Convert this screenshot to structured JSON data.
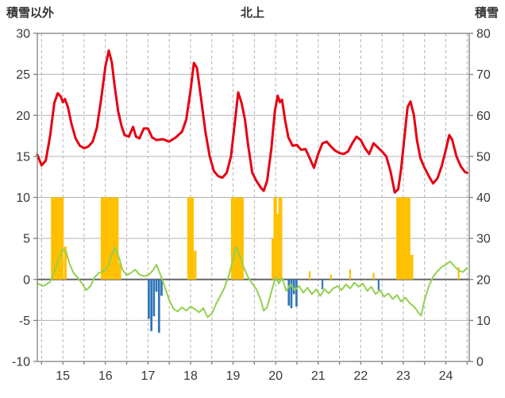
{
  "header": {
    "left_label": "積雪以外",
    "title": "北上",
    "right_label": "積雪"
  },
  "chart_data": {
    "type": "combo",
    "title": "北上",
    "x_axis": {
      "range": [
        14.4,
        24.55
      ],
      "tick_values": [
        15,
        16,
        17,
        18,
        19,
        20,
        21,
        22,
        23,
        24
      ],
      "tick_labels": [
        "15",
        "16",
        "17",
        "18",
        "19",
        "20",
        "21",
        "22",
        "23",
        "24"
      ],
      "grid_step": 0.5,
      "grid_style": "dashed"
    },
    "left_axis": {
      "label": "積雪以外",
      "min": -10,
      "max": 30,
      "step": 5,
      "tick_labels": [
        "30",
        "25",
        "20",
        "15",
        "10",
        "5",
        "0",
        "-5",
        "-10"
      ]
    },
    "right_axis": {
      "label": "積雪",
      "min": 0,
      "max": 80,
      "step": 10,
      "tick_labels": [
        "80",
        "70",
        "60",
        "50",
        "40",
        "30",
        "20",
        "10",
        "0"
      ]
    },
    "colors": {
      "red_line": "#e60012",
      "green_line": "#92d050",
      "orange_bar": "#ffc000",
      "blue_bar": "#2e75b6",
      "grid": "#b3b3b3",
      "axis": "#808080",
      "zero_line": "#666666",
      "text": "#383838"
    },
    "series": [
      {
        "name": "orange-bars",
        "type": "bar",
        "color_key": "orange_bar",
        "bars": [
          [
            14.87,
            0.3,
            10
          ],
          [
            15.06,
            0.06,
            4
          ],
          [
            16.1,
            0.42,
            10
          ],
          [
            16.34,
            0.06,
            2
          ],
          [
            18.0,
            0.15,
            10
          ],
          [
            18.11,
            0.06,
            3.5
          ],
          [
            19.1,
            0.3,
            10
          ],
          [
            19.93,
            0.05,
            5
          ],
          [
            19.99,
            0.08,
            10
          ],
          [
            20.05,
            0.04,
            8
          ],
          [
            20.11,
            0.09,
            10
          ],
          [
            20.8,
            0.04,
            1.0
          ],
          [
            21.3,
            0.04,
            0.6
          ],
          [
            21.75,
            0.04,
            1.2
          ],
          [
            22.3,
            0.04,
            0.8
          ],
          [
            23.0,
            0.33,
            10
          ],
          [
            23.2,
            0.07,
            3
          ],
          [
            24.3,
            0.04,
            1.5
          ]
        ]
      },
      {
        "name": "blue-bars",
        "type": "bar",
        "color_key": "blue_bar",
        "bars": [
          [
            17.02,
            0.05,
            -4.8
          ],
          [
            17.08,
            0.05,
            -6.3
          ],
          [
            17.14,
            0.05,
            -4.5
          ],
          [
            17.2,
            0.05,
            -1.5
          ],
          [
            17.26,
            0.05,
            -6.5
          ],
          [
            17.32,
            0.05,
            -2.0
          ],
          [
            20.31,
            0.05,
            -3.2
          ],
          [
            20.37,
            0.05,
            -3.5
          ],
          [
            20.43,
            0.05,
            -1.8
          ],
          [
            20.49,
            0.05,
            -3.3
          ],
          [
            21.1,
            0.04,
            -1.2
          ],
          [
            22.42,
            0.04,
            -1.3
          ]
        ]
      },
      {
        "name": "green-line",
        "type": "line",
        "color_key": "green_line",
        "width": 2,
        "points": [
          [
            14.4,
            -0.5
          ],
          [
            14.55,
            -0.8
          ],
          [
            14.7,
            -0.3
          ],
          [
            14.8,
            1.0
          ],
          [
            14.9,
            2.5
          ],
          [
            15.0,
            3.7
          ],
          [
            15.08,
            3.3
          ],
          [
            15.15,
            2.0
          ],
          [
            15.25,
            0.8
          ],
          [
            15.35,
            0.2
          ],
          [
            15.45,
            -0.5
          ],
          [
            15.55,
            -1.3
          ],
          [
            15.65,
            -0.8
          ],
          [
            15.75,
            0.3
          ],
          [
            15.85,
            0.8
          ],
          [
            15.95,
            1.0
          ],
          [
            16.05,
            1.5
          ],
          [
            16.15,
            3.0
          ],
          [
            16.22,
            3.9
          ],
          [
            16.3,
            3.0
          ],
          [
            16.4,
            1.2
          ],
          [
            16.5,
            0.5
          ],
          [
            16.6,
            0.8
          ],
          [
            16.7,
            1.2
          ],
          [
            16.8,
            0.6
          ],
          [
            16.9,
            0.4
          ],
          [
            17.0,
            0.5
          ],
          [
            17.1,
            1.0
          ],
          [
            17.2,
            1.8
          ],
          [
            17.3,
            0.5
          ],
          [
            17.4,
            -1.0
          ],
          [
            17.5,
            -2.5
          ],
          [
            17.6,
            -3.6
          ],
          [
            17.7,
            -3.9
          ],
          [
            17.8,
            -3.4
          ],
          [
            17.9,
            -3.8
          ],
          [
            18.0,
            -3.3
          ],
          [
            18.1,
            -3.6
          ],
          [
            18.2,
            -4.0
          ],
          [
            18.3,
            -3.5
          ],
          [
            18.4,
            -4.6
          ],
          [
            18.5,
            -4.2
          ],
          [
            18.6,
            -3.0
          ],
          [
            18.7,
            -2.0
          ],
          [
            18.8,
            -1.0
          ],
          [
            18.9,
            0.5
          ],
          [
            19.0,
            2.5
          ],
          [
            19.07,
            4.0
          ],
          [
            19.15,
            3.0
          ],
          [
            19.25,
            1.5
          ],
          [
            19.35,
            0.3
          ],
          [
            19.45,
            -0.5
          ],
          [
            19.55,
            -1.2
          ],
          [
            19.65,
            -2.5
          ],
          [
            19.72,
            -3.8
          ],
          [
            19.8,
            -3.4
          ],
          [
            19.9,
            -1.5
          ],
          [
            20.0,
            0.3
          ],
          [
            20.08,
            -0.5
          ],
          [
            20.15,
            0.2
          ],
          [
            20.25,
            -1.4
          ],
          [
            20.35,
            -0.6
          ],
          [
            20.45,
            -1.3
          ],
          [
            20.55,
            -0.8
          ],
          [
            20.65,
            -1.6
          ],
          [
            20.75,
            -1.0
          ],
          [
            20.85,
            -1.8
          ],
          [
            20.95,
            -1.2
          ],
          [
            21.05,
            -2.0
          ],
          [
            21.15,
            -1.2
          ],
          [
            21.25,
            -1.7
          ],
          [
            21.35,
            -1.1
          ],
          [
            21.45,
            -0.8
          ],
          [
            21.55,
            -1.3
          ],
          [
            21.65,
            -0.6
          ],
          [
            21.75,
            -1.1
          ],
          [
            21.85,
            -0.4
          ],
          [
            21.95,
            -0.9
          ],
          [
            22.05,
            -0.5
          ],
          [
            22.15,
            -1.4
          ],
          [
            22.25,
            -0.9
          ],
          [
            22.35,
            -1.8
          ],
          [
            22.45,
            -1.3
          ],
          [
            22.55,
            -2.1
          ],
          [
            22.65,
            -1.7
          ],
          [
            22.75,
            -2.4
          ],
          [
            22.85,
            -1.9
          ],
          [
            22.95,
            -2.7
          ],
          [
            23.05,
            -2.2
          ],
          [
            23.15,
            -2.9
          ],
          [
            23.25,
            -3.3
          ],
          [
            23.35,
            -4.0
          ],
          [
            23.42,
            -4.4
          ],
          [
            23.5,
            -2.5
          ],
          [
            23.6,
            -0.8
          ],
          [
            23.7,
            0.3
          ],
          [
            23.8,
            1.0
          ],
          [
            23.9,
            1.5
          ],
          [
            24.0,
            1.8
          ],
          [
            24.1,
            2.2
          ],
          [
            24.2,
            1.6
          ],
          [
            24.3,
            1.1
          ],
          [
            24.4,
            0.9
          ],
          [
            24.5,
            1.4
          ]
        ]
      },
      {
        "name": "red-line",
        "type": "line",
        "color_key": "red_line",
        "width": 3,
        "points": [
          [
            14.4,
            15.2
          ],
          [
            14.5,
            13.9
          ],
          [
            14.6,
            14.5
          ],
          [
            14.7,
            17.5
          ],
          [
            14.8,
            21.5
          ],
          [
            14.88,
            22.7
          ],
          [
            14.95,
            22.3
          ],
          [
            15.0,
            21.6
          ],
          [
            15.05,
            22.0
          ],
          [
            15.12,
            21.0
          ],
          [
            15.2,
            19.0
          ],
          [
            15.3,
            17.2
          ],
          [
            15.4,
            16.3
          ],
          [
            15.5,
            16.0
          ],
          [
            15.6,
            16.2
          ],
          [
            15.7,
            16.8
          ],
          [
            15.8,
            18.5
          ],
          [
            15.9,
            22.0
          ],
          [
            16.0,
            26.0
          ],
          [
            16.08,
            27.9
          ],
          [
            16.15,
            26.5
          ],
          [
            16.22,
            23.5
          ],
          [
            16.3,
            20.5
          ],
          [
            16.38,
            18.7
          ],
          [
            16.45,
            17.6
          ],
          [
            16.55,
            17.4
          ],
          [
            16.65,
            18.6
          ],
          [
            16.72,
            17.4
          ],
          [
            16.8,
            17.2
          ],
          [
            16.9,
            18.4
          ],
          [
            17.0,
            18.4
          ],
          [
            17.1,
            17.3
          ],
          [
            17.2,
            17.0
          ],
          [
            17.35,
            17.1
          ],
          [
            17.5,
            16.8
          ],
          [
            17.65,
            17.3
          ],
          [
            17.8,
            18.0
          ],
          [
            17.9,
            19.5
          ],
          [
            18.0,
            23.0
          ],
          [
            18.08,
            26.4
          ],
          [
            18.15,
            25.8
          ],
          [
            18.25,
            22.0
          ],
          [
            18.35,
            18.0
          ],
          [
            18.45,
            15.0
          ],
          [
            18.55,
            13.2
          ],
          [
            18.65,
            12.6
          ],
          [
            18.75,
            12.4
          ],
          [
            18.85,
            13.0
          ],
          [
            18.95,
            15.0
          ],
          [
            19.05,
            19.5
          ],
          [
            19.12,
            22.8
          ],
          [
            19.2,
            21.5
          ],
          [
            19.28,
            19.5
          ],
          [
            19.35,
            16.5
          ],
          [
            19.45,
            13.0
          ],
          [
            19.55,
            12.0
          ],
          [
            19.65,
            11.2
          ],
          [
            19.72,
            10.8
          ],
          [
            19.8,
            12.0
          ],
          [
            19.9,
            16.0
          ],
          [
            19.98,
            20.5
          ],
          [
            20.05,
            22.4
          ],
          [
            20.1,
            21.6
          ],
          [
            20.15,
            21.9
          ],
          [
            20.22,
            19.5
          ],
          [
            20.3,
            17.3
          ],
          [
            20.4,
            16.3
          ],
          [
            20.5,
            16.4
          ],
          [
            20.6,
            15.8
          ],
          [
            20.7,
            15.9
          ],
          [
            20.8,
            14.8
          ],
          [
            20.9,
            13.6
          ],
          [
            21.0,
            15.3
          ],
          [
            21.1,
            16.6
          ],
          [
            21.2,
            16.8
          ],
          [
            21.3,
            16.2
          ],
          [
            21.4,
            15.7
          ],
          [
            21.5,
            15.4
          ],
          [
            21.6,
            15.3
          ],
          [
            21.7,
            15.6
          ],
          [
            21.8,
            16.6
          ],
          [
            21.9,
            17.4
          ],
          [
            22.0,
            17.0
          ],
          [
            22.1,
            16.0
          ],
          [
            22.2,
            15.3
          ],
          [
            22.3,
            16.6
          ],
          [
            22.4,
            16.1
          ],
          [
            22.5,
            15.6
          ],
          [
            22.6,
            15.0
          ],
          [
            22.7,
            13.2
          ],
          [
            22.8,
            10.6
          ],
          [
            22.88,
            11.0
          ],
          [
            22.95,
            13.5
          ],
          [
            23.02,
            17.0
          ],
          [
            23.1,
            21.0
          ],
          [
            23.17,
            21.7
          ],
          [
            23.25,
            20.0
          ],
          [
            23.32,
            17.0
          ],
          [
            23.4,
            14.8
          ],
          [
            23.5,
            13.6
          ],
          [
            23.6,
            12.6
          ],
          [
            23.7,
            11.7
          ],
          [
            23.8,
            12.3
          ],
          [
            23.9,
            13.8
          ],
          [
            24.0,
            15.8
          ],
          [
            24.08,
            17.6
          ],
          [
            24.15,
            17.0
          ],
          [
            24.25,
            15.0
          ],
          [
            24.35,
            13.8
          ],
          [
            24.45,
            13.1
          ],
          [
            24.5,
            13.0
          ]
        ]
      }
    ]
  }
}
